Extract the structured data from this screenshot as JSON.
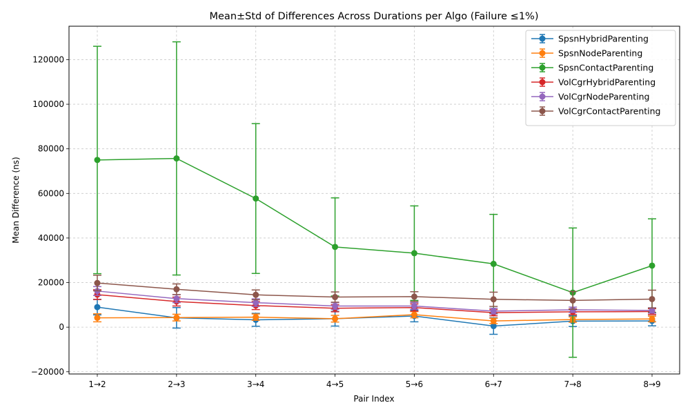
{
  "chart_data": {
    "type": "line",
    "title": "Mean±Std of Differences Across Durations per Algo (Failure ≤1%)",
    "xlabel": "Pair Index",
    "ylabel": "Mean Difference (ns)",
    "categories": [
      "1→2",
      "2→3",
      "3→4",
      "4→5",
      "5→6",
      "6→7",
      "7→8",
      "8→9"
    ],
    "ylim": [
      -21000,
      135000
    ],
    "yticks": [
      -20000,
      0,
      20000,
      40000,
      60000,
      80000,
      100000,
      120000
    ],
    "ytick_labels": [
      "−20000",
      "0",
      "20000",
      "40000",
      "60000",
      "80000",
      "100000",
      "120000"
    ],
    "grid": true,
    "legend_position": "top-right",
    "series": [
      {
        "name": "SpsnHybridParenting",
        "color": "#1f77b4",
        "values": [
          9000,
          4200,
          3300,
          3800,
          5000,
          500,
          2700,
          2800
        ],
        "errors": [
          3500,
          4600,
          2900,
          3300,
          2600,
          3700,
          2400,
          2200
        ]
      },
      {
        "name": "SpsnNodeParenting",
        "color": "#ff7f0e",
        "values": [
          4200,
          4300,
          4500,
          3800,
          5600,
          2800,
          3400,
          3700
        ],
        "errors": [
          1800,
          1500,
          1400,
          1500,
          1400,
          1200,
          1200,
          1300
        ]
      },
      {
        "name": "SpsnContactParenting",
        "color": "#2ca02c",
        "values": [
          75000,
          75700,
          57700,
          36000,
          33200,
          28400,
          15500,
          27600
        ],
        "errors": [
          51000,
          52300,
          33600,
          22000,
          21200,
          22200,
          29000,
          21000
        ]
      },
      {
        "name": "VolCgrHybridParenting",
        "color": "#d62728",
        "values": [
          14600,
          11500,
          9700,
          8500,
          8800,
          6500,
          6900,
          7000
        ],
        "errors": [
          2200,
          2000,
          1800,
          1600,
          1600,
          1400,
          1300,
          1300
        ]
      },
      {
        "name": "VolCgrNodeParenting",
        "color": "#9467bd",
        "values": [
          16200,
          12800,
          11000,
          9500,
          9500,
          7200,
          7800,
          7500
        ],
        "errors": [
          2000,
          1800,
          1700,
          1500,
          1500,
          1300,
          1200,
          1200
        ]
      },
      {
        "name": "VolCgrContactParenting",
        "color": "#8c564b",
        "values": [
          19800,
          17000,
          14500,
          13500,
          13700,
          12500,
          12000,
          12600
        ],
        "errors": [
          3500,
          2400,
          2200,
          2300,
          2200,
          3200,
          4000,
          4000
        ]
      }
    ]
  }
}
